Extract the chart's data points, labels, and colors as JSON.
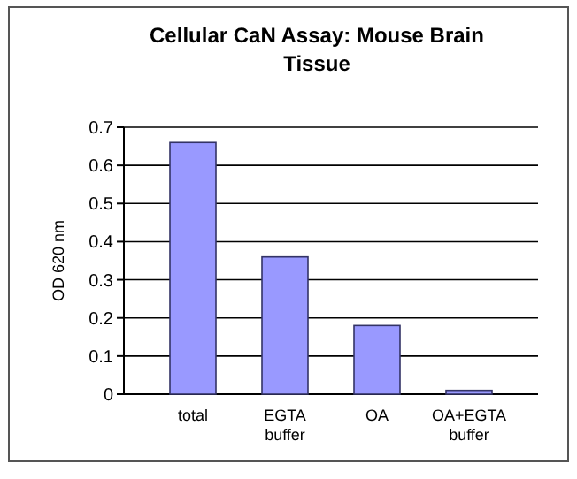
{
  "chart_data": {
    "type": "bar",
    "title": "Cellular CaN Assay:  Mouse Brain Tissue",
    "ylabel": "OD 620 nm",
    "categories": [
      "total",
      "EGTA buffer",
      "OA",
      "OA+EGTA buffer"
    ],
    "values": [
      0.66,
      0.36,
      0.18,
      0.01
    ],
    "color": "#9999ff",
    "ylim": [
      0,
      0.7
    ],
    "yticks": [
      0,
      0.1,
      0.2,
      0.3,
      0.4,
      0.5,
      0.6,
      0.7
    ],
    "grid": "y"
  }
}
